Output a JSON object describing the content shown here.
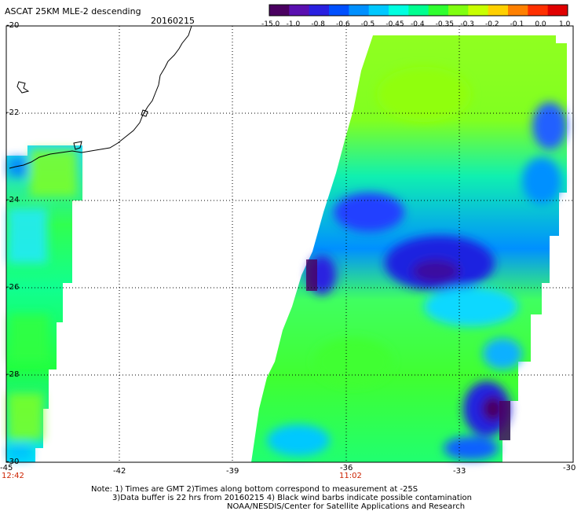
{
  "header": {
    "title": "ASCAT 25KM MLE-2 descending",
    "date": "20160215"
  },
  "colorbar": {
    "labels": [
      "-15.0",
      "-1.0",
      "-0.8",
      "-0.6",
      "-0.5",
      "-0.45",
      "-0.4",
      "-0.35",
      "-0.3",
      "-0.2",
      "-0.1",
      "0.0",
      "1.0"
    ],
    "colors": [
      "#4a0060",
      "#5a10b0",
      "#2a20e0",
      "#0050ff",
      "#0090ff",
      "#00c8ff",
      "#00ffe0",
      "#00ff90",
      "#30ff30",
      "#80ff10",
      "#c8ff00",
      "#ffd000",
      "#ff8000",
      "#ff3000",
      "#e00000"
    ]
  },
  "map": {
    "lon_ticks": [
      "-45",
      "-42",
      "-39",
      "-36",
      "-33",
      "-30"
    ],
    "lat_ticks": [
      "-20",
      "-22",
      "-24",
      "-26",
      "-28",
      "-30"
    ],
    "pass_times": [
      {
        "lon": "-45",
        "time": "12:42"
      },
      {
        "lon": "-36",
        "time": "11:02"
      }
    ]
  },
  "notes": [
    "Note: 1) Times are GMT 2)Times along bottom correspond to measurement at -25S",
    "3)Data buffer is 22 hrs from 20160215 4) Black wind barbs indicate possible contamination",
    "NOAA/NESDIS/Center for Satellite Applications and Research"
  ]
}
